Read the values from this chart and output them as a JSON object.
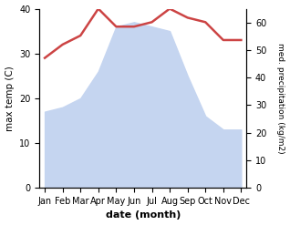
{
  "months": [
    "Jan",
    "Feb",
    "Mar",
    "Apr",
    "May",
    "Jun",
    "Jul",
    "Aug",
    "Sep",
    "Oct",
    "Nov",
    "Dec"
  ],
  "month_x": [
    0,
    1,
    2,
    3,
    4,
    5,
    6,
    7,
    8,
    9,
    10,
    11
  ],
  "temperature": [
    29,
    32,
    34,
    40,
    36,
    36,
    37,
    40,
    38,
    37,
    33,
    33
  ],
  "precipitation_left_axis": [
    17,
    18,
    20,
    26,
    36,
    37,
    36,
    35,
    25,
    16,
    13,
    13
  ],
  "temp_color": "#cc4444",
  "precip_fill_color": "#c5d5f0",
  "xlabel": "date (month)",
  "ylabel_left": "max temp (C)",
  "ylabel_right": "med. precipitation (kg/m2)",
  "ylim_left": [
    0,
    40
  ],
  "ylim_right": [
    0,
    65
  ],
  "yticks_left": [
    0,
    10,
    20,
    30,
    40
  ],
  "yticks_right": [
    0,
    10,
    20,
    30,
    40,
    50,
    60
  ],
  "background_color": "#ffffff",
  "temp_linewidth": 1.8,
  "figsize": [
    3.18,
    2.47
  ],
  "dpi": 100
}
